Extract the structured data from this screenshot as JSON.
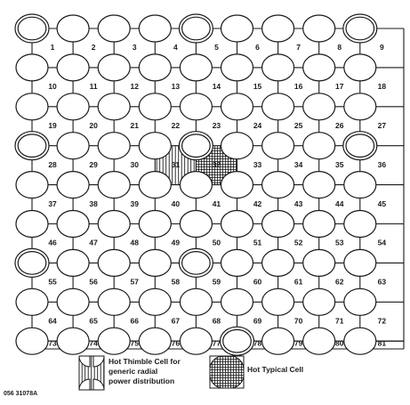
{
  "diagram": {
    "grid": {
      "columns": 9,
      "rows": 9,
      "cell_numbers": [
        "1",
        "2",
        "3",
        "4",
        "5",
        "6",
        "7",
        "8",
        "9",
        "10",
        "11",
        "12",
        "13",
        "14",
        "15",
        "16",
        "17",
        "18",
        "19",
        "20",
        "21",
        "22",
        "23",
        "24",
        "25",
        "26",
        "27",
        "28",
        "29",
        "30",
        "31",
        "32",
        "33",
        "34",
        "35",
        "36",
        "37",
        "38",
        "39",
        "40",
        "41",
        "42",
        "43",
        "44",
        "45",
        "46",
        "47",
        "48",
        "49",
        "50",
        "51",
        "52",
        "53",
        "54",
        "55",
        "56",
        "57",
        "58",
        "59",
        "60",
        "61",
        "62",
        "63",
        "64",
        "65",
        "66",
        "67",
        "68",
        "69",
        "70",
        "71",
        "72",
        "73",
        "74",
        "75",
        "76",
        "77",
        "78",
        "79",
        "80",
        "81"
      ],
      "hot_thimble_cell": "31",
      "hot_typical_cell": "32",
      "thimble_rod_positions": [
        [
          0,
          0
        ],
        [
          0,
          4
        ],
        [
          0,
          8
        ],
        [
          3,
          0
        ],
        [
          3,
          4
        ],
        [
          3,
          8
        ],
        [
          6,
          0
        ],
        [
          6,
          4
        ],
        [
          8,
          5
        ]
      ]
    },
    "legend": {
      "thimble_label_lines": [
        "Hot Thimble Cell for",
        "generic radial",
        "power distribution"
      ],
      "typical_label": "Hot Typical Cell"
    },
    "figure_id": "056 31078A",
    "colors": {
      "line": "#1a1a1a",
      "background": "#ffffff"
    }
  }
}
